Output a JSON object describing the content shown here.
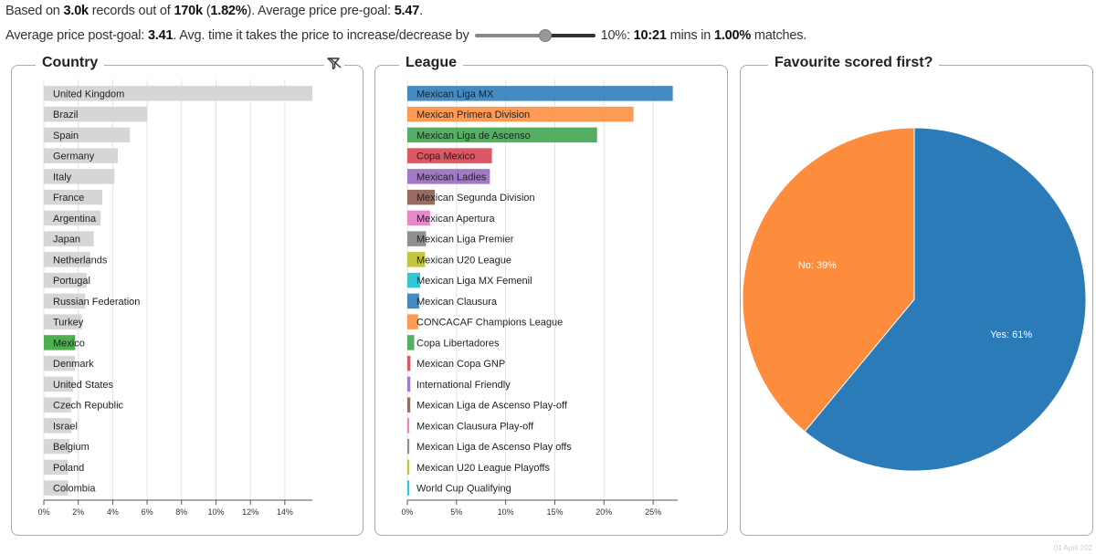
{
  "summary": {
    "l1_t1": "Based on ",
    "l1_b1": "3.0k",
    "l1_t2": " records out of ",
    "l1_b2": "170k",
    "l1_t3": " (",
    "l1_b3": "1.82%",
    "l1_t4": "). Average price pre-goal: ",
    "l1_b4": "5.47",
    "l1_t5": ".",
    "l2_t1": "Average price post-goal: ",
    "l2_b1": "3.41",
    "l2_t2": ". Avg. time it takes the price to increase/decrease by",
    "l2_t3": "10%: ",
    "l2_b2": "10:21",
    "l2_t4": " mins in ",
    "l2_b3": "1.00%",
    "l2_t5": " matches."
  },
  "slider": {
    "value_percent": 10,
    "fill_fraction": 0.58
  },
  "footer": {
    "date": "01 April 202"
  },
  "colors": {
    "gray_bar": "#d6d6d6",
    "highlight": "#4caf50",
    "grid": "#e3e3e3",
    "axis": "#555",
    "palette": [
      "#2b7bb9",
      "#fd8d3c",
      "#3fa34d",
      "#d6404e",
      "#9467bd",
      "#8c564b",
      "#e377c2",
      "#7f7f7f",
      "#bcbd22",
      "#17becf",
      "#2b7bb9",
      "#fd8d3c",
      "#3fa34d",
      "#d6404e",
      "#9467bd",
      "#8c564b",
      "#e377c2",
      "#7f7f7f",
      "#bcbd22",
      "#17becf"
    ]
  },
  "chart_data": [
    {
      "type": "bar",
      "orientation": "horizontal",
      "title": "Country",
      "filter_icon": "filter-off-icon",
      "highlighted": "Mexico",
      "categories": [
        "United Kingdom",
        "Brazil",
        "Spain",
        "Germany",
        "Italy",
        "France",
        "Argentina",
        "Japan",
        "Netherlands",
        "Portugal",
        "Russian Federation",
        "Turkey",
        "Mexico",
        "Denmark",
        "United States",
        "Czech Republic",
        "Israel",
        "Belgium",
        "Poland",
        "Colombia"
      ],
      "values": [
        15.6,
        6.0,
        5.0,
        4.3,
        4.1,
        3.4,
        3.3,
        2.9,
        2.7,
        2.5,
        2.4,
        2.2,
        1.82,
        1.8,
        1.7,
        1.6,
        1.6,
        1.5,
        1.4,
        1.4
      ],
      "xlim": [
        0,
        15.6
      ],
      "ticks": [
        "0%",
        "2%",
        "4%",
        "6%",
        "8%",
        "10%",
        "12%",
        "14%"
      ],
      "grid": true
    },
    {
      "type": "bar",
      "orientation": "horizontal",
      "title": "League",
      "categories": [
        "Mexican Liga MX",
        "Mexican Primera Division",
        "Mexican Liga de Ascenso",
        "Copa Mexico",
        "Mexican Ladies",
        "Mexican Segunda Division",
        "Mexican Apertura",
        "Mexican Liga Premier",
        "Mexican U20 League",
        "Mexican Liga MX Femenil",
        "Mexican Clausura",
        "CONCACAF Champions League",
        "Copa Libertadores",
        "Mexican Copa GNP",
        "International Friendly",
        "Mexican Liga de Ascenso Play-off",
        "Mexican Clausura Play-off",
        "Mexican Liga de Ascenso Play offs",
        "Mexican U20 League Playoffs",
        "World Cup Qualifying"
      ],
      "values": [
        27.0,
        23.0,
        19.3,
        8.6,
        8.4,
        2.8,
        2.3,
        1.9,
        1.8,
        1.3,
        1.2,
        1.1,
        0.7,
        0.3,
        0.3,
        0.3,
        0.2,
        0.2,
        0.2,
        0.2
      ],
      "xlim": [
        0,
        27.5
      ],
      "ticks": [
        "0%",
        "5%",
        "10%",
        "15%",
        "20%",
        "25%"
      ],
      "grid": true
    },
    {
      "type": "pie",
      "title": "Favourite scored first?",
      "slices": [
        {
          "label": "Yes: 61%",
          "value": 61,
          "color": "#2b7bb9"
        },
        {
          "label": "No: 39%",
          "value": 39,
          "color": "#fd8d3c"
        }
      ]
    }
  ]
}
